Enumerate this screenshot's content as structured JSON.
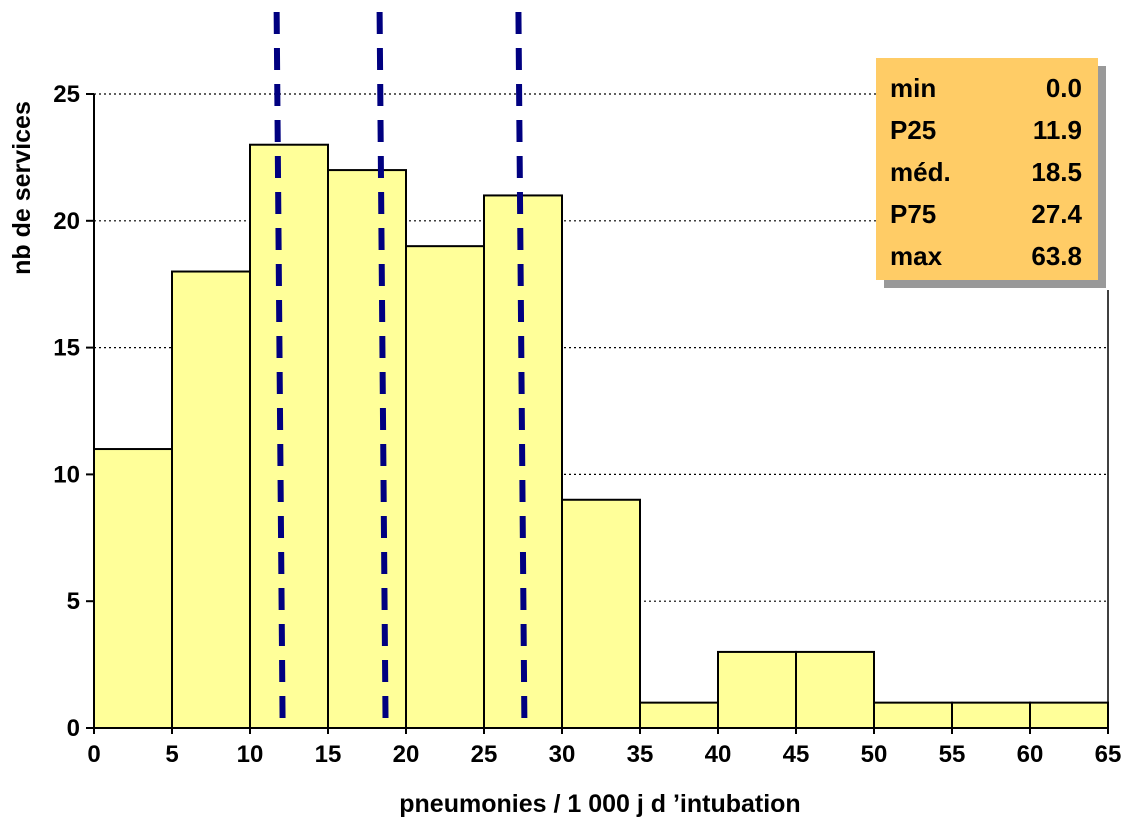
{
  "chart_data": {
    "type": "bar",
    "subtype": "histogram",
    "bin_edges": [
      0,
      5,
      10,
      15,
      20,
      25,
      30,
      35,
      40,
      45,
      50,
      55,
      60,
      65
    ],
    "values": [
      11,
      18,
      23,
      22,
      19,
      21,
      9,
      1,
      3,
      3,
      1,
      1,
      1
    ],
    "xlabel": "pneumonies / 1 000  j d ’intubation",
    "ylabel": "nb de services",
    "xticks": [
      "0",
      "5",
      "10",
      "15",
      "20",
      "25",
      "30",
      "35",
      "40",
      "45",
      "50",
      "55",
      "60",
      "65"
    ],
    "yticks": [
      "0",
      "5",
      "10",
      "15",
      "20",
      "25"
    ],
    "xlim": [
      0,
      65
    ],
    "ylim": [
      0,
      25
    ],
    "grid": "horizontal dotted",
    "reference_lines": [
      {
        "label": "P25",
        "x": 11.9
      },
      {
        "label": "méd.",
        "x": 18.5
      },
      {
        "label": "P75",
        "x": 27.4
      }
    ],
    "stats_box": {
      "placement": "top-right",
      "rows": [
        {
          "label": "min",
          "value": "0.0"
        },
        {
          "label": "P25",
          "value": "11.9"
        },
        {
          "label": "méd.",
          "value": "18.5"
        },
        {
          "label": "P75",
          "value": "27.4"
        },
        {
          "label": "max",
          "value": "63.8"
        }
      ]
    },
    "colors": {
      "bar_fill": "#ffff99",
      "bar_stroke": "#000000",
      "reference_line": "#000080",
      "stats_box_fill": "#ffcc66",
      "stats_box_shadow": "#999999",
      "grid": "#000000"
    }
  }
}
